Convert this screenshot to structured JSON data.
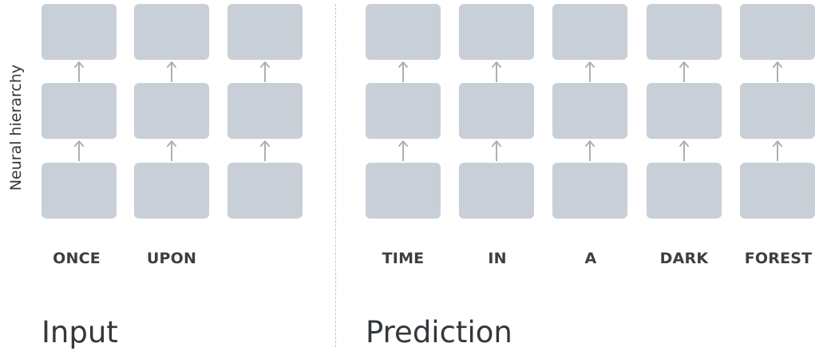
{
  "diagram": {
    "axis_label": "Neural hierarchy",
    "input": {
      "title": "Input",
      "words": [
        "ONCE",
        "UPON"
      ]
    },
    "prediction": {
      "title": "Prediction",
      "words": [
        "TIME",
        "IN",
        "A",
        "DARK",
        "FOREST"
      ]
    },
    "colors": {
      "box": "#c9cfd7",
      "arrow": "#aab0b8",
      "divider": "#c4c8cc",
      "text": "#33383d"
    }
  }
}
